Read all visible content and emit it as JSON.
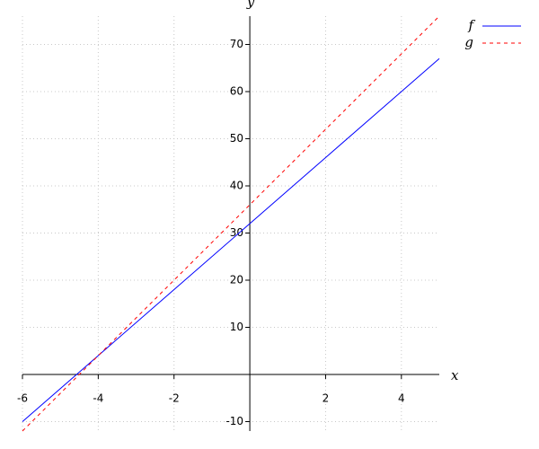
{
  "chart_data": {
    "type": "line",
    "xlabel": "x",
    "ylabel": "y",
    "x": [
      -6,
      -4,
      -2,
      0,
      2,
      4,
      5
    ],
    "series": [
      {
        "name": "f",
        "color": "#0000ff",
        "dash": false,
        "values": [
          -10,
          4,
          18,
          32,
          46,
          60,
          67
        ]
      },
      {
        "name": "g",
        "color": "#ff0000",
        "dash": true,
        "values": [
          -12,
          4,
          20,
          36,
          52,
          68,
          76
        ]
      }
    ],
    "xlim": [
      -6,
      5
    ],
    "ylim": [
      -12,
      76
    ],
    "xticks": [
      -6,
      -4,
      -2,
      2,
      4
    ],
    "yticks": [
      -10,
      10,
      20,
      30,
      40,
      50,
      60,
      70
    ],
    "grid": true,
    "legend": "top-right"
  }
}
